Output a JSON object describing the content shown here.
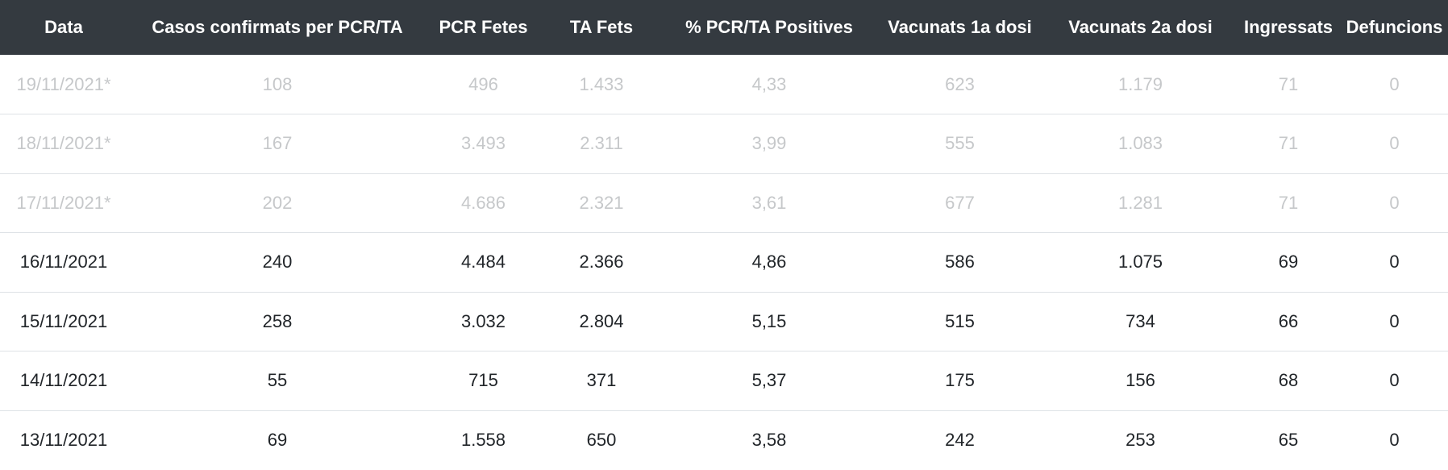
{
  "table": {
    "headers": [
      "Data",
      "Casos confirmats per PCR/TA",
      "PCR Fetes",
      "TA Fets",
      "% PCR/TA Positives",
      "Vacunats 1a dosi",
      "Vacunats 2a dosi",
      "Ingressats",
      "Defuncions"
    ],
    "rows": [
      {
        "provisional": true,
        "cells": [
          "19/11/2021*",
          "108",
          "496",
          "1.433",
          "4,33",
          "623",
          "1.179",
          "71",
          "0"
        ]
      },
      {
        "provisional": true,
        "cells": [
          "18/11/2021*",
          "167",
          "3.493",
          "2.311",
          "3,99",
          "555",
          "1.083",
          "71",
          "0"
        ]
      },
      {
        "provisional": true,
        "cells": [
          "17/11/2021*",
          "202",
          "4.686",
          "2.321",
          "3,61",
          "677",
          "1.281",
          "71",
          "0"
        ]
      },
      {
        "provisional": false,
        "cells": [
          "16/11/2021",
          "240",
          "4.484",
          "2.366",
          "4,86",
          "586",
          "1.075",
          "69",
          "0"
        ]
      },
      {
        "provisional": false,
        "cells": [
          "15/11/2021",
          "258",
          "3.032",
          "2.804",
          "5,15",
          "515",
          "734",
          "66",
          "0"
        ]
      },
      {
        "provisional": false,
        "cells": [
          "14/11/2021",
          "55",
          "715",
          "371",
          "5,37",
          "175",
          "156",
          "68",
          "0"
        ]
      },
      {
        "provisional": false,
        "cells": [
          "13/11/2021",
          "69",
          "1.558",
          "650",
          "3,58",
          "242",
          "253",
          "65",
          "0"
        ]
      }
    ]
  },
  "colors": {
    "header_bg": "#343a40",
    "header_text": "#ffffff",
    "text": "#212529",
    "provisional_text": "#c6c8ca",
    "row_border": "#dee2e6"
  }
}
